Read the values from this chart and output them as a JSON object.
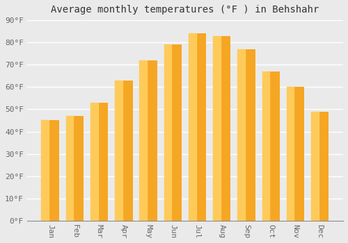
{
  "title": "Average monthly temperatures (°F ) in Behshahr",
  "months": [
    "Jan",
    "Feb",
    "Mar",
    "Apr",
    "May",
    "Jun",
    "Jul",
    "Aug",
    "Sep",
    "Oct",
    "Nov",
    "Dec"
  ],
  "values": [
    45,
    47,
    53,
    63,
    72,
    79,
    84,
    83,
    77,
    67,
    60,
    49
  ],
  "bar_color_main": "#F5A623",
  "bar_color_light": "#FECB5A",
  "ylim": [
    0,
    90
  ],
  "yticks": [
    0,
    10,
    20,
    30,
    40,
    50,
    60,
    70,
    80,
    90
  ],
  "background_color": "#EAEAEA",
  "plot_bg_color": "#EAEAEA",
  "grid_color": "#FFFFFF",
  "title_fontsize": 10,
  "tick_fontsize": 8,
  "tick_color": "#666666"
}
